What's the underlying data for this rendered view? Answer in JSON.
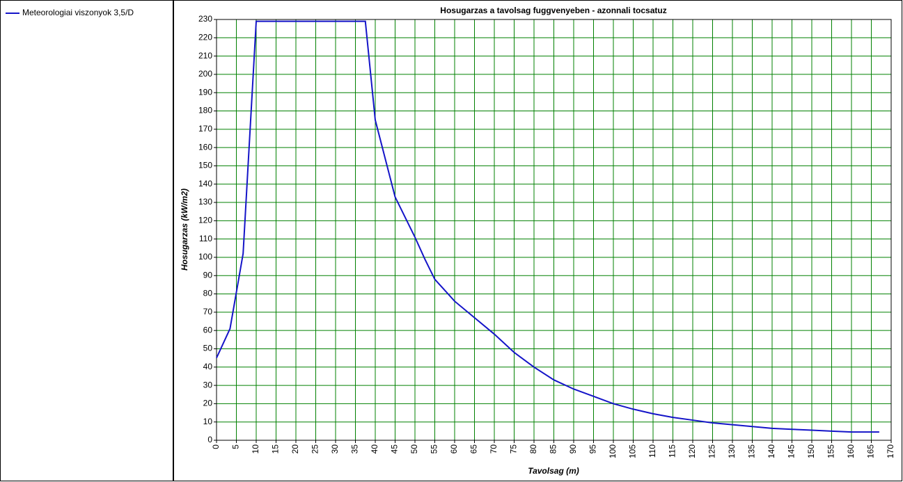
{
  "chart_data": {
    "type": "line",
    "title": "Hosugarzas a tavolsag fuggvenyeben - azonnali tocsatuz",
    "x_label": "Tavolsag (m)",
    "y_label": "Hosugarzas (kW/m2)",
    "x": [
      0,
      3.4,
      6.7,
      10,
      37.5,
      40,
      45,
      50,
      52.5,
      55,
      60,
      65,
      70,
      75,
      80,
      85,
      90,
      95,
      100,
      105,
      110,
      115,
      120,
      125,
      130,
      135,
      140,
      145,
      150,
      155,
      160,
      167
    ],
    "series": [
      {
        "name": "Meteorologiai viszonyok 3,5/D",
        "color": "#1414c8",
        "values": [
          45,
          61,
          102,
          229,
          229,
          175,
          133,
          111,
          99,
          88,
          76,
          67,
          58,
          48,
          40,
          33,
          28,
          24,
          20,
          17,
          14.5,
          12.5,
          11,
          9.5,
          8.5,
          7.5,
          6.5,
          6,
          5.5,
          5,
          4.5,
          4.5
        ]
      }
    ],
    "xlim": [
      0,
      170
    ],
    "ylim": [
      0,
      230
    ],
    "xticks": [
      0,
      5,
      10,
      15,
      20,
      25,
      30,
      35,
      40,
      45,
      50,
      55,
      60,
      65,
      70,
      75,
      80,
      85,
      90,
      95,
      100,
      105,
      110,
      115,
      120,
      125,
      130,
      135,
      140,
      145,
      150,
      155,
      160,
      165,
      170
    ],
    "yticks": [
      0,
      10,
      20,
      30,
      40,
      50,
      60,
      70,
      80,
      90,
      100,
      110,
      120,
      130,
      140,
      150,
      160,
      170,
      180,
      190,
      200,
      210,
      220,
      230
    ],
    "grid": true,
    "grid_color": "#008000",
    "legend": "left"
  }
}
